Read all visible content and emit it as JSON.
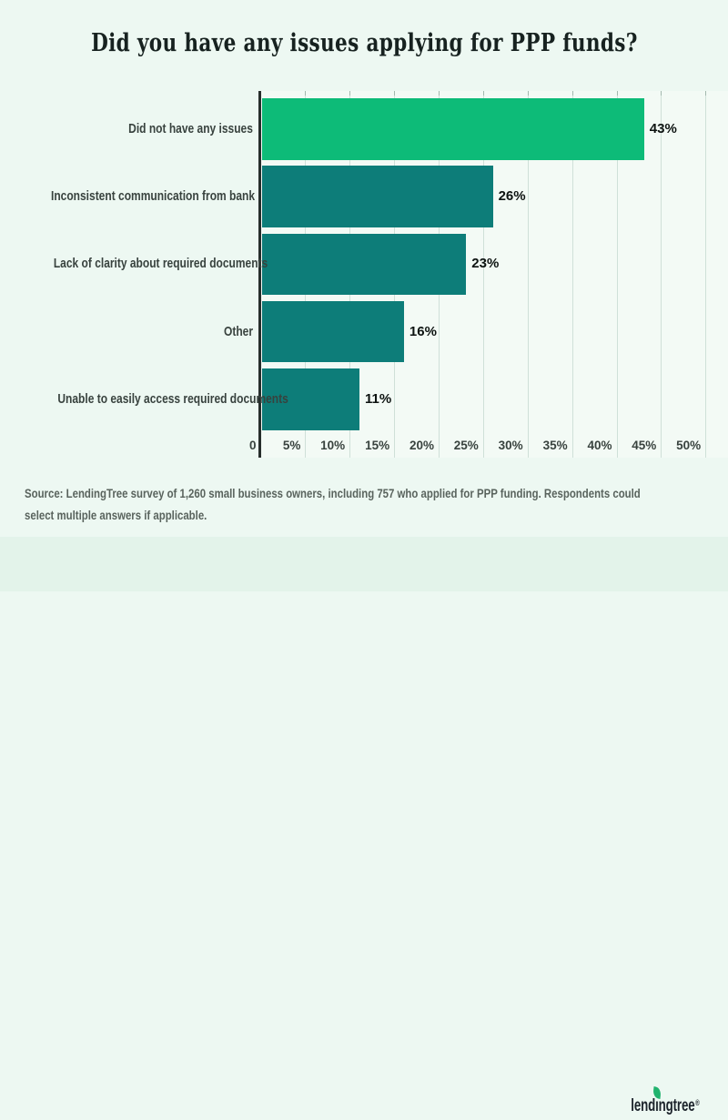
{
  "title": "Did you have any issues applying for PPP funds?",
  "chart_data": {
    "type": "bar",
    "orientation": "horizontal",
    "title": "Did you have any issues applying for PPP funds?",
    "categories": [
      "Did not have any issues",
      "Inconsistent communication from bank",
      "Lack of clarity about required documents",
      "Other",
      "Unable to easily access required documents"
    ],
    "values": [
      43,
      26,
      23,
      16,
      11
    ],
    "value_labels": [
      "43%",
      "26%",
      "23%",
      "16%",
      "11%"
    ],
    "x_tick_labels": [
      "0",
      "5%",
      "10%",
      "15%",
      "20%",
      "25%",
      "30%",
      "35%",
      "40%",
      "45%",
      "50%"
    ],
    "xlim": [
      0,
      50
    ],
    "grid": true,
    "legend": false,
    "bar_colors": [
      "#0dbb78",
      "#0d7d79",
      "#0d7d79",
      "#0d7d79",
      "#0d7d79"
    ]
  },
  "source_note": {
    "line1": "Source: LendingTree survey of 1,260 small business owners, including 757 who applied for PPP funding. Respondents could",
    "line2": "select multiple answers if applicable."
  },
  "footer": {
    "logo_pre": "lend",
    "logo_i": "ı",
    "logo_post": "ngtree",
    "registered_mark": "®"
  },
  "colors": {
    "highlight_bar": "#0dbb78",
    "bar": "#0d7d79",
    "page_bg": "#edf8f2",
    "plot_bg": "#f3faf5",
    "footer_bg": "#e3f3ea",
    "axis": "#272e2c",
    "gridline": "#cfe0d8",
    "leaf_green": "#21b36e"
  }
}
